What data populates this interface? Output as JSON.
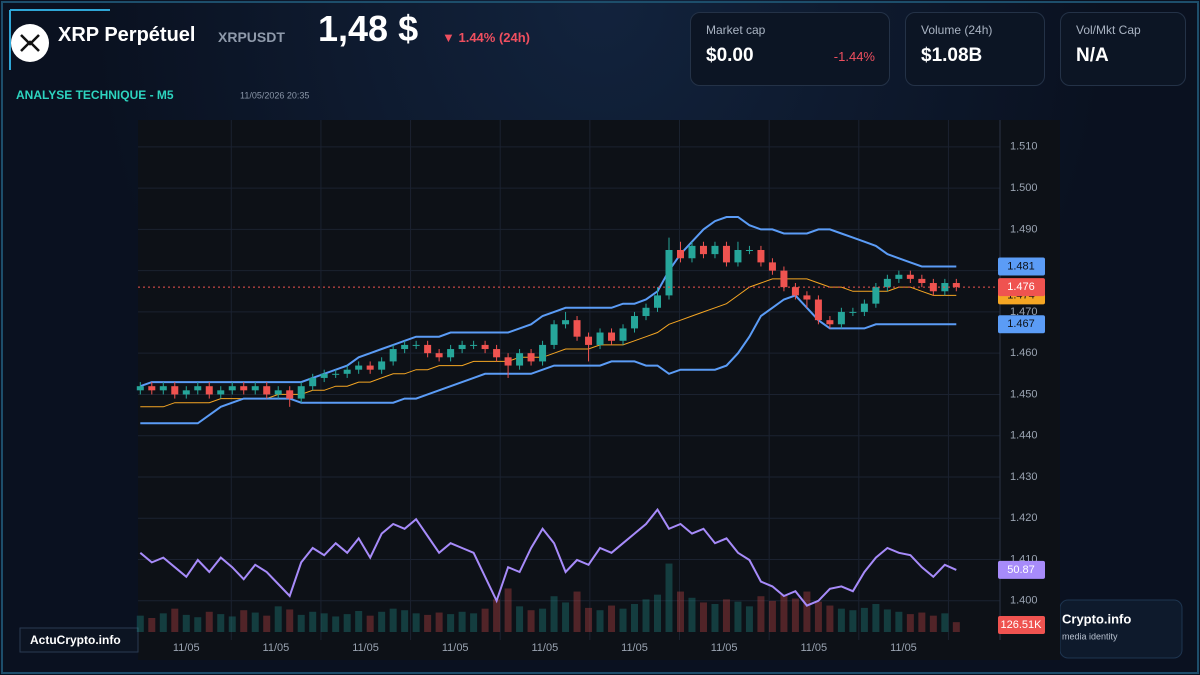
{
  "header": {
    "title": "XRP Perpétuel",
    "symbol": "XRPUSDT",
    "price": "1,48 $",
    "change": "▼ 1.44% (24h)"
  },
  "stats": [
    {
      "label": "Market cap",
      "value": "$0.00",
      "change": "-1.44%"
    },
    {
      "label": "Volume (24h)",
      "value": "$1.08B"
    },
    {
      "label": "Vol/Mkt Cap",
      "value": "N/A"
    }
  ],
  "footer": {
    "brand": "ActuCrypto.info",
    "badge": "Crypto.info",
    "badge_sub": "media identity"
  },
  "chart_data": {
    "type": "candlestick",
    "title": "ANALYSE TECHNIQUE - M5",
    "subtitle": "11/05/2026 20:35",
    "xlim": [
      -0.2,
      74.8
    ],
    "xticks": [
      {
        "value": 4,
        "label": "11/05"
      },
      {
        "value": 11.8,
        "label": "11/05"
      },
      {
        "value": 19.6,
        "label": "11/05"
      },
      {
        "value": 27.4,
        "label": "11/05"
      },
      {
        "value": 35.2,
        "label": "11/05"
      },
      {
        "value": 43,
        "label": "11/05"
      },
      {
        "value": 50.8,
        "label": "11/05"
      },
      {
        "value": 58.6,
        "label": "11/05"
      },
      {
        "value": 66.4,
        "label": "11/05"
      }
    ],
    "ylim": [
      1.3905,
      1.5165
    ],
    "yticks": [
      {
        "value": 1.51,
        "label": "1.510"
      },
      {
        "value": 1.5,
        "label": "1.500"
      },
      {
        "value": 1.49,
        "label": "1.490"
      },
      {
        "value": 1.48,
        "label": "1.480"
      },
      {
        "value": 1.47,
        "label": "1.470"
      },
      {
        "value": 1.46,
        "label": "1.460"
      },
      {
        "value": 1.45,
        "label": "1.450"
      },
      {
        "value": 1.44,
        "label": "1.440"
      },
      {
        "value": 1.43,
        "label": "1.430"
      },
      {
        "value": 1.42,
        "label": "1.420"
      },
      {
        "value": 1.41,
        "label": "1.410"
      },
      {
        "value": 1.4,
        "label": "1.400"
      }
    ],
    "grid": true,
    "colors": {
      "up": "#26a69a",
      "down": "#ef5350"
    },
    "open": [
      1.451,
      1.452,
      1.451,
      1.452,
      1.45,
      1.451,
      1.452,
      1.45,
      1.451,
      1.452,
      1.451,
      1.452,
      1.45,
      1.451,
      1.449,
      1.452,
      1.454,
      1.455,
      1.455,
      1.456,
      1.457,
      1.456,
      1.458,
      1.461,
      1.462,
      1.462,
      1.46,
      1.459,
      1.461,
      1.462,
      1.462,
      1.461,
      1.459,
      1.457,
      1.46,
      1.458,
      1.462,
      1.467,
      1.468,
      1.464,
      1.462,
      1.465,
      1.463,
      1.466,
      1.469,
      1.471,
      1.474,
      1.485,
      1.483,
      1.486,
      1.484,
      1.486,
      1.482,
      1.485,
      1.485,
      1.482,
      1.48,
      1.476,
      1.474,
      1.473,
      1.468,
      1.467,
      1.47,
      1.47,
      1.472,
      1.476,
      1.478,
      1.479,
      1.478,
      1.477,
      1.475,
      1.477
    ],
    "high": [
      1.453,
      1.453,
      1.453,
      1.453,
      1.452,
      1.453,
      1.453,
      1.452,
      1.453,
      1.453,
      1.453,
      1.453,
      1.452,
      1.452,
      1.453,
      1.455,
      1.456,
      1.456,
      1.457,
      1.458,
      1.458,
      1.459,
      1.462,
      1.463,
      1.463,
      1.463,
      1.461,
      1.462,
      1.463,
      1.463,
      1.463,
      1.462,
      1.46,
      1.461,
      1.461,
      1.463,
      1.468,
      1.47,
      1.469,
      1.465,
      1.466,
      1.466,
      1.467,
      1.47,
      1.472,
      1.476,
      1.488,
      1.487,
      1.487,
      1.487,
      1.487,
      1.487,
      1.487,
      1.486,
      1.486,
      1.483,
      1.481,
      1.477,
      1.475,
      1.474,
      1.469,
      1.471,
      1.471,
      1.473,
      1.477,
      1.479,
      1.48,
      1.48,
      1.479,
      1.478,
      1.478,
      1.478
    ],
    "low": [
      1.45,
      1.45,
      1.45,
      1.449,
      1.449,
      1.45,
      1.449,
      1.449,
      1.45,
      1.45,
      1.45,
      1.449,
      1.449,
      1.447,
      1.448,
      1.451,
      1.453,
      1.454,
      1.454,
      1.455,
      1.455,
      1.455,
      1.457,
      1.46,
      1.461,
      1.459,
      1.458,
      1.458,
      1.46,
      1.461,
      1.46,
      1.458,
      1.454,
      1.456,
      1.457,
      1.457,
      1.461,
      1.466,
      1.463,
      1.458,
      1.461,
      1.462,
      1.462,
      1.465,
      1.468,
      1.47,
      1.473,
      1.482,
      1.482,
      1.483,
      1.483,
      1.481,
      1.481,
      1.484,
      1.481,
      1.479,
      1.475,
      1.473,
      1.471,
      1.467,
      1.466,
      1.466,
      1.469,
      1.469,
      1.471,
      1.475,
      1.477,
      1.477,
      1.476,
      1.474,
      1.474,
      1.475
    ],
    "close": [
      1.452,
      1.451,
      1.452,
      1.45,
      1.451,
      1.452,
      1.45,
      1.451,
      1.452,
      1.451,
      1.452,
      1.45,
      1.451,
      1.449,
      1.452,
      1.454,
      1.455,
      1.455,
      1.456,
      1.457,
      1.456,
      1.458,
      1.461,
      1.462,
      1.462,
      1.46,
      1.459,
      1.461,
      1.462,
      1.462,
      1.461,
      1.459,
      1.457,
      1.46,
      1.458,
      1.462,
      1.467,
      1.468,
      1.464,
      1.462,
      1.465,
      1.463,
      1.466,
      1.469,
      1.471,
      1.474,
      1.485,
      1.483,
      1.486,
      1.484,
      1.486,
      1.482,
      1.485,
      1.485,
      1.482,
      1.48,
      1.476,
      1.474,
      1.473,
      1.468,
      1.467,
      1.47,
      1.47,
      1.472,
      1.476,
      1.478,
      1.479,
      1.478,
      1.477,
      1.475,
      1.477,
      1.476
    ],
    "series": [
      {
        "color": "#5b9cf6",
        "values": [
          1.452,
          1.453,
          1.453,
          1.453,
          1.453,
          1.453,
          1.453,
          1.453,
          1.453,
          1.453,
          1.453,
          1.453,
          1.453,
          1.453,
          1.453,
          1.454,
          1.455,
          1.456,
          1.457,
          1.459,
          1.46,
          1.461,
          1.462,
          1.463,
          1.464,
          1.464,
          1.464,
          1.465,
          1.465,
          1.465,
          1.465,
          1.465,
          1.465,
          1.466,
          1.467,
          1.469,
          1.47,
          1.471,
          1.471,
          1.471,
          1.471,
          1.471,
          1.472,
          1.472,
          1.473,
          1.475,
          1.48,
          1.484,
          1.487,
          1.49,
          1.492,
          1.493,
          1.493,
          1.491,
          1.49,
          1.49,
          1.489,
          1.489,
          1.489,
          1.49,
          1.49,
          1.489,
          1.488,
          1.487,
          1.486,
          1.484,
          1.483,
          1.482,
          1.481,
          1.481,
          1.481,
          1.481
        ]
      },
      {
        "color": "#f5a623",
        "values": [
          1.447,
          1.447,
          1.447,
          1.448,
          1.448,
          1.448,
          1.448,
          1.449,
          1.449,
          1.449,
          1.449,
          1.449,
          1.45,
          1.45,
          1.45,
          1.451,
          1.451,
          1.452,
          1.452,
          1.453,
          1.453,
          1.454,
          1.455,
          1.455,
          1.456,
          1.456,
          1.457,
          1.457,
          1.457,
          1.458,
          1.458,
          1.458,
          1.458,
          1.459,
          1.459,
          1.459,
          1.46,
          1.461,
          1.461,
          1.461,
          1.462,
          1.462,
          1.462,
          1.463,
          1.464,
          1.465,
          1.467,
          1.468,
          1.469,
          1.47,
          1.471,
          1.472,
          1.474,
          1.476,
          1.477,
          1.478,
          1.478,
          1.478,
          1.478,
          1.477,
          1.476,
          1.476,
          1.475,
          1.475,
          1.475,
          1.475,
          1.476,
          1.476,
          1.475,
          1.474,
          1.474,
          1.474
        ]
      },
      {
        "color": "#5b9cf6",
        "values": [
          1.443,
          1.443,
          1.443,
          1.443,
          1.443,
          1.443,
          1.445,
          1.447,
          1.448,
          1.449,
          1.449,
          1.449,
          1.449,
          1.449,
          1.448,
          1.448,
          1.448,
          1.448,
          1.448,
          1.448,
          1.448,
          1.448,
          1.448,
          1.449,
          1.449,
          1.45,
          1.451,
          1.452,
          1.453,
          1.454,
          1.455,
          1.455,
          1.455,
          1.455,
          1.455,
          1.456,
          1.457,
          1.457,
          1.457,
          1.457,
          1.457,
          1.458,
          1.458,
          1.458,
          1.457,
          1.457,
          1.455,
          1.456,
          1.456,
          1.456,
          1.456,
          1.457,
          1.46,
          1.464,
          1.469,
          1.471,
          1.473,
          1.474,
          1.471,
          1.468,
          1.466,
          1.466,
          1.466,
          1.466,
          1.467,
          1.467,
          1.467,
          1.467,
          1.467,
          1.467,
          1.467,
          1.467
        ]
      }
    ],
    "rsi": {
      "color": "#a78bfa",
      "ylim": [
        30,
        80
      ],
      "values": [
        58,
        54,
        56,
        52,
        48,
        55,
        50,
        56,
        52,
        47,
        53,
        50,
        45,
        40,
        54,
        60,
        57,
        62,
        58,
        64,
        56,
        66,
        70,
        68,
        72,
        65,
        58,
        62,
        60,
        58,
        48,
        38,
        52,
        50,
        60,
        68,
        62,
        50,
        55,
        53,
        60,
        58,
        62,
        66,
        70,
        76,
        68,
        70,
        66,
        68,
        62,
        64,
        58,
        55,
        46,
        44,
        40,
        42,
        36,
        38,
        43,
        44,
        42,
        50,
        56,
        60,
        58,
        57,
        52,
        48,
        53,
        50.87
      ]
    },
    "volume": {
      "ylim": [
        0,
        900
      ],
      "values": [
        210,
        180,
        240,
        300,
        220,
        190,
        260,
        230,
        200,
        280,
        250,
        210,
        330,
        290,
        220,
        260,
        240,
        200,
        230,
        270,
        210,
        260,
        300,
        280,
        240,
        220,
        250,
        230,
        260,
        240,
        300,
        420,
        560,
        330,
        280,
        300,
        460,
        380,
        520,
        310,
        280,
        340,
        300,
        360,
        420,
        480,
        880,
        520,
        440,
        380,
        360,
        420,
        390,
        330,
        460,
        400,
        480,
        430,
        520,
        390,
        340,
        300,
        280,
        310,
        360,
        290,
        260,
        230,
        250,
        210,
        240,
        126.51
      ],
      "value_labels": [
        null,
        null,
        null,
        null,
        null,
        null,
        null,
        null,
        null,
        null,
        null,
        null,
        null,
        null,
        null,
        null,
        null,
        null,
        null,
        null,
        null,
        null,
        null,
        null,
        null,
        null,
        null,
        null,
        null,
        null,
        null,
        null,
        null,
        null,
        null,
        null,
        null,
        null,
        null,
        null,
        null,
        null,
        null,
        null,
        null,
        null,
        null,
        null,
        null,
        null,
        null,
        null,
        null,
        null,
        null,
        null,
        null,
        null,
        null,
        null,
        null,
        null,
        null,
        null,
        null,
        null,
        null,
        null,
        null,
        null,
        null,
        "126.51K"
      ]
    }
  }
}
